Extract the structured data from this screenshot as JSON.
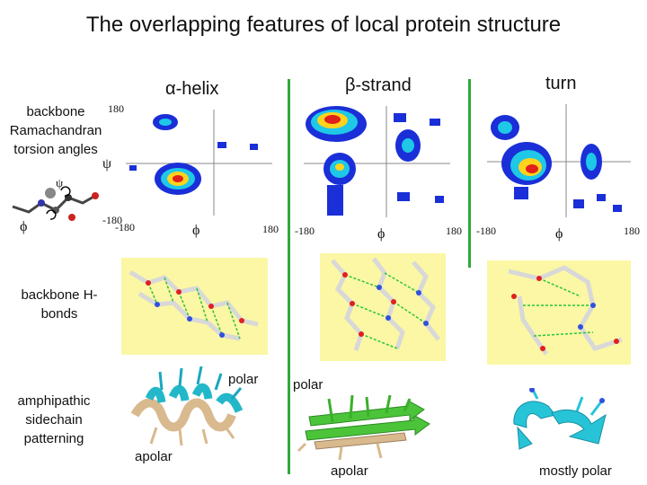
{
  "title": "The overlapping features of local protein structure",
  "columns": {
    "helix": {
      "label": "α-helix"
    },
    "strand": {
      "label": "β-strand"
    },
    "turn": {
      "label": "turn"
    }
  },
  "row_labels": {
    "ramachandran": "backbone Ramachandran torsion angles",
    "hbonds": "backbone H-bonds",
    "sidechain": "amphipathic sidechain patterning"
  },
  "axes": {
    "psi_symbol": "ψ",
    "phi_symbol": "ϕ",
    "psi_max": "180",
    "psi_min": "-180",
    "phi_min": "-180",
    "phi_max": "180"
  },
  "sidechain_labels": {
    "helix_polar": "polar",
    "helix_apolar": "apolar",
    "strand_polar": "polar",
    "strand_apolar": "apolar",
    "turn_polar": "mostly polar"
  },
  "colors": {
    "separator": "#2eaa3a",
    "hbond_background": "#fbf7a4",
    "density_high": "#e0201a",
    "density_mid": "#ffd21e",
    "density_low": "#1ec8e6",
    "density_base": "#1a2fd8"
  }
}
